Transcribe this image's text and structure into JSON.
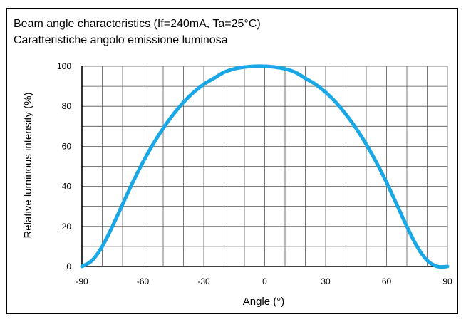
{
  "chart_data": {
    "type": "line",
    "title": "Beam angle characteristics (If=240mA, Ta=25°C)",
    "subtitle": "Caratteristiche angolo emissione luminosa",
    "xlabel": "Angle (°)",
    "ylabel": "Relative luminous intensity (%)",
    "xlim": [
      -90,
      90
    ],
    "ylim": [
      0,
      100
    ],
    "x_ticks": [
      -90,
      -60,
      -30,
      0,
      30,
      60,
      90
    ],
    "y_ticks": [
      0,
      20,
      40,
      60,
      80,
      100
    ],
    "x_tick_labels": [
      "-90",
      "-60",
      "-30",
      "0",
      "30",
      "60",
      "90"
    ],
    "y_tick_labels": [
      "0",
      "20",
      "40",
      "60",
      "80",
      "100"
    ],
    "grid": true,
    "series": [
      {
        "color": "#1aa7e6",
        "x": [
          -90,
          -85,
          -80,
          -75,
          -70,
          -65,
          -60,
          -55,
          -50,
          -45,
          -40,
          -35,
          -30,
          -25,
          -20,
          -15,
          -10,
          -5,
          0,
          5,
          10,
          15,
          20,
          25,
          30,
          35,
          40,
          45,
          50,
          55,
          60,
          65,
          70,
          75,
          80,
          85,
          90
        ],
        "y": [
          0,
          3,
          10,
          20,
          31,
          42,
          52,
          61,
          69,
          76,
          82,
          87,
          91,
          94,
          97,
          98.7,
          99.6,
          100,
          100,
          99.6,
          98.7,
          97,
          94,
          91,
          87,
          82,
          76,
          69,
          61,
          52,
          42,
          31,
          20,
          10,
          3,
          0,
          0
        ]
      }
    ]
  }
}
